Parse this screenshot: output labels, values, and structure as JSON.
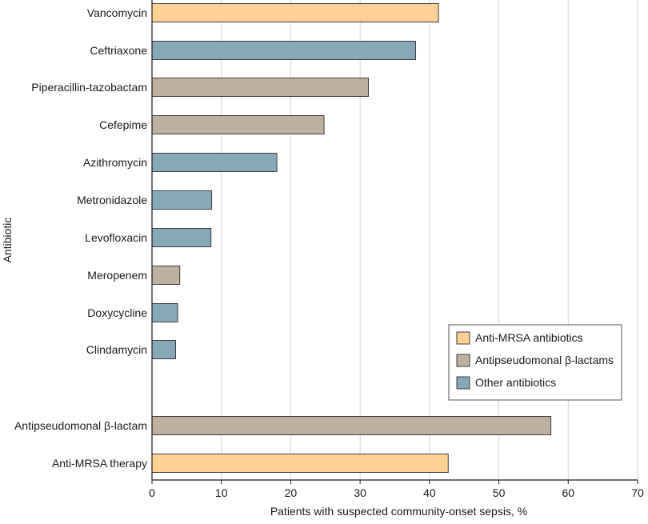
{
  "chart_data": {
    "type": "bar",
    "orientation": "horizontal",
    "title": "",
    "xlabel": "Patients with suspected community-onset sepsis, %",
    "ylabel": "Antibiotic",
    "xlim": [
      0,
      70
    ],
    "xticks": [
      0,
      10,
      20,
      30,
      40,
      50,
      60,
      70
    ],
    "grid": "vertical",
    "legend_position": "bottom-right",
    "legend": [
      {
        "key": "mrsa",
        "label": "Anti-MRSA antibiotics",
        "color": "#ffd194"
      },
      {
        "key": "beta",
        "label": "Antipseudomonal β-lactams",
        "color": "#bdb09e"
      },
      {
        "key": "other",
        "label": "Other antibiotics",
        "color": "#86a9ba"
      }
    ],
    "categories": [
      "Vancomycin",
      "Ceftriaxone",
      "Piperacillin-tazobactam",
      "Cefepime",
      "Azithromycin",
      "Metronidazole",
      "Levofloxacin",
      "Meropenem",
      "Doxycycline",
      "Clindamycin",
      "Antipseudomonal β-lactam",
      "Anti-MRSA therapy"
    ],
    "values": [
      41.3,
      38,
      31.2,
      24.8,
      18,
      8.6,
      8.5,
      4,
      3.7,
      3.4,
      57.5,
      42.7
    ],
    "groups": [
      "mrsa",
      "other",
      "beta",
      "beta",
      "other",
      "other",
      "other",
      "beta",
      "other",
      "other",
      "beta",
      "mrsa"
    ]
  }
}
